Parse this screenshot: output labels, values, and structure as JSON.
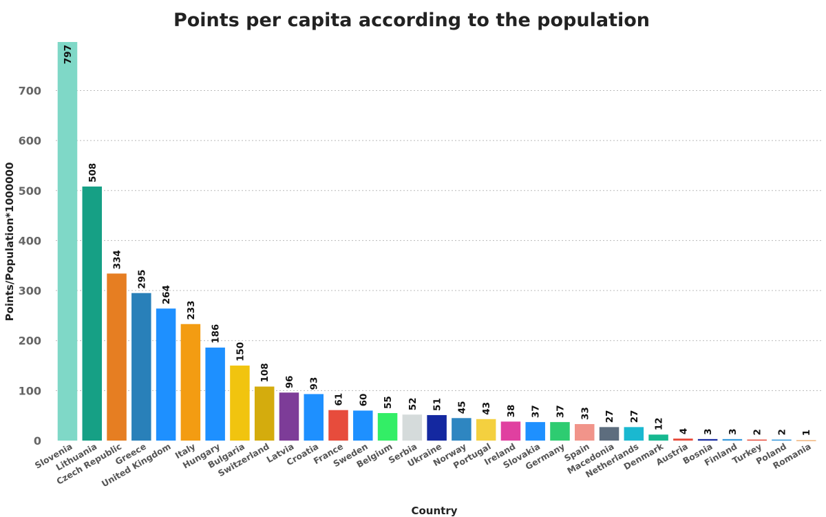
{
  "chart_data": {
    "type": "bar",
    "title": "Points per capita according to the population",
    "xlabel": "Country",
    "ylabel": "Points/Population*1000000",
    "ylim": [
      0,
      797
    ],
    "yticks": [
      0,
      100,
      200,
      300,
      400,
      500,
      600,
      700
    ],
    "grid": true,
    "categories": [
      "Slovenia",
      "Lithuania",
      "Czech Republic",
      "Greece",
      "United Kingdom",
      "Italy",
      "Hungary",
      "Bulgaria",
      "Switzerland",
      "Latvia",
      "Croatia",
      "France",
      "Sweden",
      "Belgium",
      "Serbia",
      "Ukraine",
      "Norway",
      "Portugal",
      "Ireland",
      "Slovakia",
      "Germany",
      "Spain",
      "Macedonia",
      "Netherlands",
      "Denmark",
      "Austria",
      "Bosnia",
      "Finland",
      "Turkey",
      "Poland",
      "Romania"
    ],
    "values": [
      797,
      508,
      334,
      295,
      264,
      233,
      186,
      150,
      108,
      96,
      93,
      61,
      60,
      55,
      52,
      51,
      45,
      43,
      38,
      37,
      37,
      33,
      27,
      27,
      12,
      4,
      3,
      3,
      2,
      2,
      1
    ],
    "colors": [
      "#7fd8c7",
      "#16a085",
      "#e67e22",
      "#2980b9",
      "#1e90ff",
      "#f39c12",
      "#1e90ff",
      "#f1c40f",
      "#d4ac0d",
      "#7d3c98",
      "#1e90ff",
      "#e74c3c",
      "#1e90ff",
      "#33ee66",
      "#d5dbdb",
      "#1428a0",
      "#2e86c1",
      "#f4d03f",
      "#e040a0",
      "#1e90ff",
      "#2ecc71",
      "#f1948a",
      "#5d6d7e",
      "#1ab8d0",
      "#17b890",
      "#e74c3c",
      "#1428a0",
      "#3498db",
      "#e74c3c",
      "#3498db",
      "#f0b27a"
    ]
  }
}
